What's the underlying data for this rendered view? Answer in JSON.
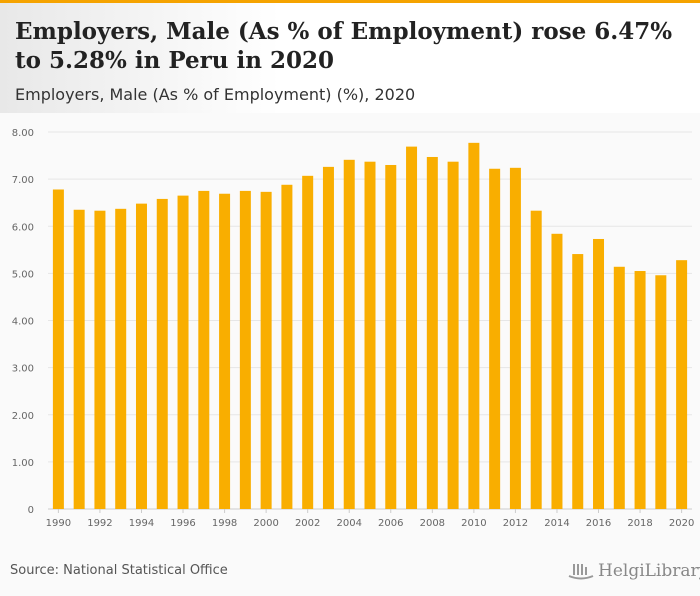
{
  "header": {
    "title": "Employers, Male (As % of Employment) rose 6.47% to 5.28% in Peru in 2020",
    "subtitle": "Employers, Male (As % of Employment) (%), 2020"
  },
  "footer": {
    "source": "Source: National Statistical Office",
    "logo": "HelgiLibrary"
  },
  "colors": {
    "bar": "#f9ae00",
    "accent": "#f5a300"
  },
  "chart_data": {
    "type": "bar",
    "title": "Employers, Male (As % of Employment) (%), 2020",
    "xlabel": "",
    "ylabel": "",
    "ylim": [
      0,
      8
    ],
    "yticks": [
      "0",
      "1.00",
      "2.00",
      "3.00",
      "4.00",
      "5.00",
      "6.00",
      "7.00",
      "8.00"
    ],
    "xticks": [
      "1990",
      "1992",
      "1994",
      "1996",
      "1998",
      "2000",
      "2002",
      "2004",
      "2006",
      "2008",
      "2010",
      "2012",
      "2014",
      "2016",
      "2018",
      "2020"
    ],
    "categories": [
      1990,
      1991,
      1992,
      1993,
      1994,
      1995,
      1996,
      1997,
      1998,
      1999,
      2000,
      2001,
      2002,
      2003,
      2004,
      2005,
      2006,
      2007,
      2008,
      2009,
      2010,
      2011,
      2012,
      2013,
      2014,
      2015,
      2016,
      2017,
      2018,
      2019,
      2020
    ],
    "values": [
      6.78,
      6.35,
      6.33,
      6.37,
      6.48,
      6.58,
      6.65,
      6.75,
      6.69,
      6.75,
      6.73,
      6.88,
      7.07,
      7.26,
      7.41,
      7.37,
      7.3,
      7.69,
      7.47,
      7.37,
      7.77,
      7.22,
      7.24,
      6.33,
      5.84,
      5.41,
      5.73,
      5.14,
      5.05,
      4.96,
      5.28
    ],
    "grid": true
  }
}
